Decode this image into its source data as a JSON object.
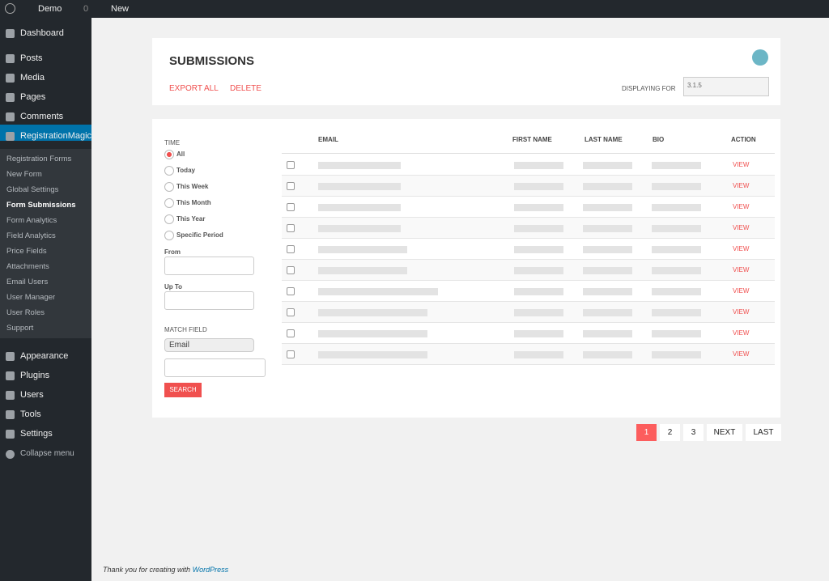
{
  "admin_bar": {
    "site": "Demo",
    "comments": "0",
    "new": "New"
  },
  "menu": {
    "top": [
      "Dashboard",
      "Posts",
      "Media",
      "Pages",
      "Comments",
      "RegistrationMagic"
    ],
    "submenu": [
      "Registration Forms",
      "New Form",
      "Global Settings",
      "Form Submissions",
      "Form Analytics",
      "Field Analytics",
      "Price Fields",
      "Attachments",
      "Email Users",
      "User Manager",
      "User Roles",
      "Support"
    ],
    "bottom": [
      "Appearance",
      "Plugins",
      "Users",
      "Tools",
      "Settings"
    ],
    "collapse": "Collapse menu"
  },
  "header": {
    "title": "SUBMISSIONS",
    "export": "EXPORT ALL",
    "delete": "DELETE",
    "displaying_label": "DISPLAYING FOR",
    "displaying_value": "3.1.5"
  },
  "filters": {
    "time_label": "TIME",
    "options": [
      "All",
      "Today",
      "This Week",
      "This Month",
      "This Year",
      "Specific Period"
    ],
    "from": "From",
    "up_to": "Up To",
    "match_field": "MATCH FIELD",
    "field": "Email",
    "search": "SEARCH"
  },
  "table": {
    "columns": [
      "EMAIL",
      "FIRST NAME",
      "LAST NAME",
      "BIO",
      "ACTION"
    ],
    "row_actions": [
      "VIEW",
      "VIEW",
      "VIEW",
      "VIEW",
      "VIEW",
      "VIEW",
      "VIEW",
      "VIEW",
      "VIEW",
      "VIEW"
    ]
  },
  "pagination": [
    "1",
    "2",
    "3",
    "NEXT",
    "LAST"
  ],
  "footer": {
    "text": "Thank you for creating with",
    "link": "WordPress"
  }
}
